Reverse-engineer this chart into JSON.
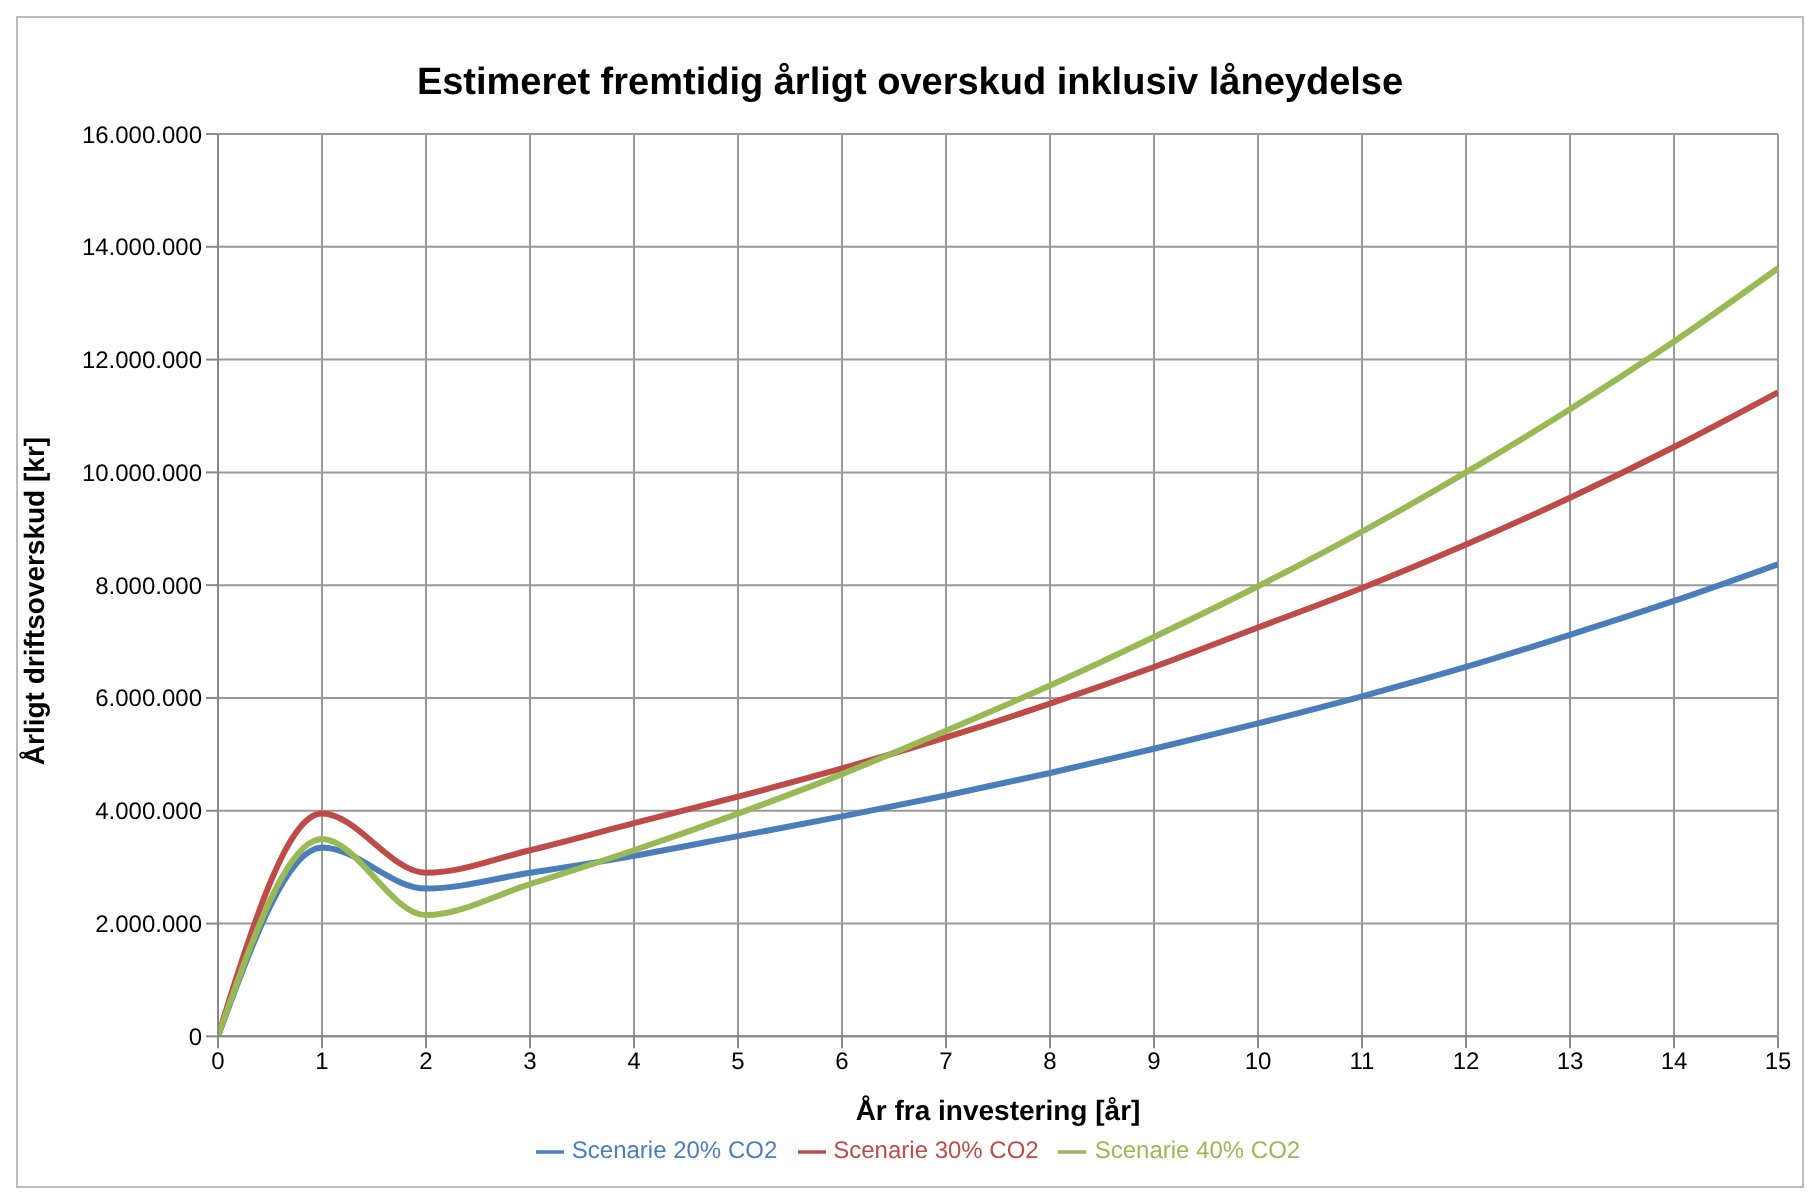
{
  "chart_data": {
    "type": "line",
    "title": "Estimeret fremtidig årligt overskud inklusiv låneydelse",
    "xlabel": "År fra investering [år]",
    "ylabel": "Årligt driftsoverskud [kr]",
    "x": [
      0,
      1,
      2,
      3,
      4,
      5,
      6,
      7,
      8,
      9,
      10,
      11,
      12,
      13,
      14,
      15
    ],
    "series": [
      {
        "name": "Scenarie 20% CO2",
        "color": "#4a7ebb",
        "values": [
          0,
          3350000,
          2620000,
          2900000,
          3200000,
          3550000,
          3900000,
          4270000,
          4670000,
          5100000,
          5550000,
          6030000,
          6550000,
          7120000,
          7720000,
          8370000
        ]
      },
      {
        "name": "Scenarie 30% CO2",
        "color": "#be4b48",
        "values": [
          0,
          3950000,
          2900000,
          3300000,
          3780000,
          4250000,
          4750000,
          5300000,
          5900000,
          6550000,
          7250000,
          7950000,
          8720000,
          9550000,
          10450000,
          11420000
        ]
      },
      {
        "name": "Scenarie 40% CO2",
        "color": "#98b954",
        "values": [
          0,
          3500000,
          2150000,
          2700000,
          3300000,
          3950000,
          4650000,
          5420000,
          6220000,
          7080000,
          7980000,
          8950000,
          10000000,
          11120000,
          12320000,
          13620000
        ]
      }
    ],
    "xlim": [
      0,
      15
    ],
    "xticks": [
      0,
      1,
      2,
      3,
      4,
      5,
      6,
      7,
      8,
      9,
      10,
      11,
      12,
      13,
      14,
      15
    ],
    "ylim": [
      0,
      16000000
    ],
    "yticks": [
      0,
      {
        "value": 2000000,
        "label": "2.000.000"
      },
      {
        "value": 4000000,
        "label": "4.000.000"
      },
      {
        "value": 6000000,
        "label": "6.000.000"
      },
      {
        "value": 8000000,
        "label": "8.000.000"
      },
      {
        "value": 10000000,
        "label": "10.000.000"
      },
      {
        "value": 12000000,
        "label": "12.000.000"
      },
      {
        "value": 14000000,
        "label": "14.000.000"
      },
      {
        "value": 16000000,
        "label": "16.000.000"
      }
    ],
    "grid": true,
    "legend": "bottom",
    "marker": "none",
    "line_style": "solid"
  }
}
